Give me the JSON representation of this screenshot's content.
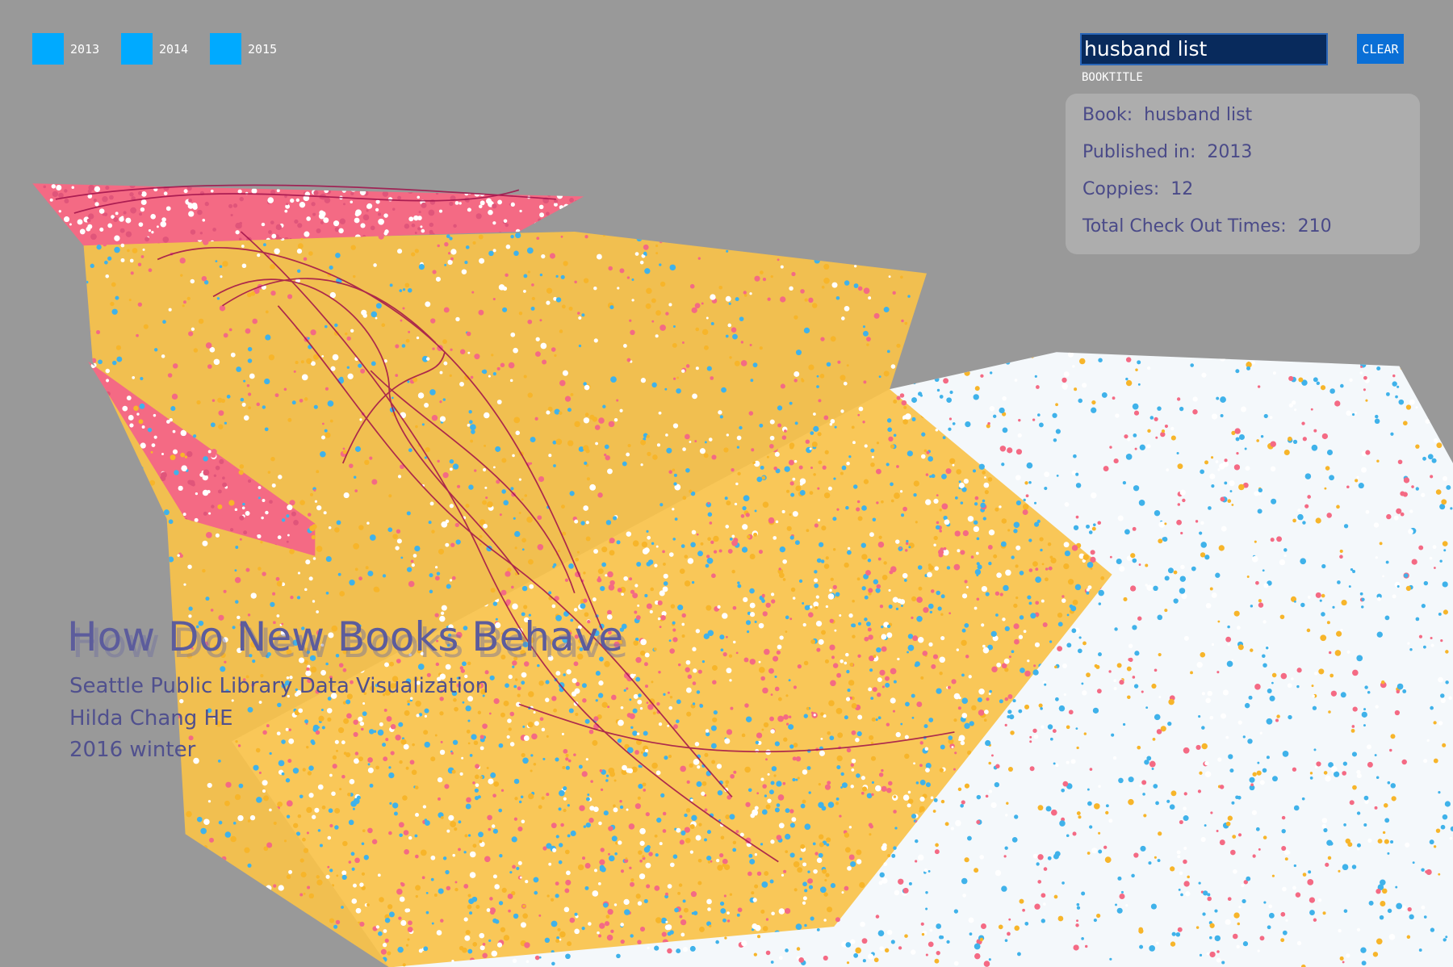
{
  "legend": {
    "items": [
      {
        "label": "2013"
      },
      {
        "label": "2014"
      },
      {
        "label": "2015"
      }
    ]
  },
  "search": {
    "value": "husband list",
    "field_label": "BOOKTITLE",
    "button": "CLEAR"
  },
  "info_panel": {
    "rows": [
      {
        "label": "Book:",
        "value": "husband list"
      },
      {
        "label": "Published in:",
        "value": "2013"
      },
      {
        "label": "Coppies:",
        "value": "12"
      },
      {
        "label": "Total Check Out Times:",
        "value": "210"
      }
    ]
  },
  "header": {
    "title": "How Do New Books Behave",
    "subtitle_lines": [
      "Seattle Public Library Data Visualization",
      "Hilda Chang HE",
      "2016 winter"
    ]
  }
}
